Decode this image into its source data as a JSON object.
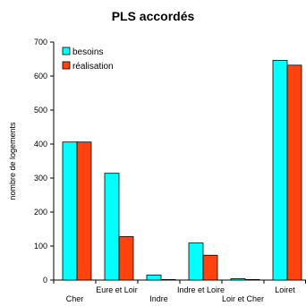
{
  "chart_data": {
    "type": "bar",
    "title": "PLS accordés",
    "ylabel": "nombre de logements",
    "xlabel": "",
    "ylim": [
      0,
      700
    ],
    "yticks": [
      0,
      100,
      200,
      300,
      400,
      500,
      600,
      700
    ],
    "categories": [
      "Cher",
      "Eure et Loir",
      "Indre",
      "Indre et Loire",
      "Loir et Cher",
      "Loiret"
    ],
    "series": [
      {
        "name": "besoins",
        "color": "#00ffff",
        "values": [
          406,
          314,
          15,
          109,
          4,
          646
        ]
      },
      {
        "name": "réalisation",
        "color": "#ff420e",
        "values": [
          406,
          128,
          1,
          73,
          0,
          632
        ]
      }
    ],
    "grid": false,
    "legend_position": "top-left"
  }
}
